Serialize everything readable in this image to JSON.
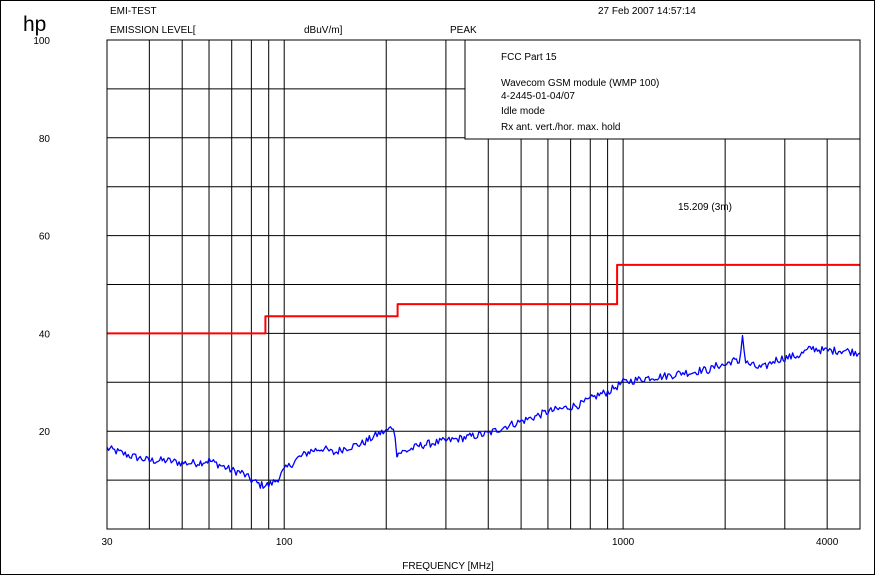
{
  "logo": "hp",
  "header": {
    "test_name": "EMI-TEST",
    "measurement": "EMISSION LEVEL[",
    "unit": "dBuV/m]",
    "detector": "PEAK",
    "datetime": "27 Feb 2007  14:57:14"
  },
  "info_box": [
    "FCC Part 15",
    "Wavecom GSM module (WMP 100)",
    "4-2445-01-04/07",
    "Idle mode",
    "Rx ant. vert./hor. max. hold"
  ],
  "limit_label": "15.209  (3m)",
  "colors": {
    "limit": "#ff0000",
    "trace": "#0000ff",
    "detector": "#0000ff",
    "grid": "#000000"
  },
  "chart_data": {
    "type": "line",
    "title": "",
    "xlabel": "FREQUENCY [MHz]",
    "ylabel": "EMISSION LEVEL[ dBuV/m]",
    "xscale": "log",
    "xlim": [
      30,
      5000
    ],
    "ylim": [
      0,
      100
    ],
    "x_tick_labels": [
      {
        "value": 30,
        "label": "30"
      },
      {
        "value": 100,
        "label": "100"
      },
      {
        "value": 1000,
        "label": "1000"
      },
      {
        "value": 4000,
        "label": "4000"
      }
    ],
    "y_tick_labels": [
      20,
      40,
      60,
      80,
      100
    ],
    "grid": true,
    "series": [
      {
        "name": "15.209  (3m)",
        "color": "#ff0000",
        "step": true,
        "x": [
          30,
          88,
          88,
          216,
          216,
          960,
          960,
          5000
        ],
        "y": [
          40,
          40,
          43.5,
          43.5,
          46,
          46,
          54,
          54
        ]
      },
      {
        "name": "PEAK",
        "color": "#0000ff",
        "x": [
          30,
          35,
          40,
          45,
          50,
          55,
          60,
          65,
          70,
          75,
          80,
          85,
          90,
          95,
          100,
          110,
          120,
          130,
          140,
          150,
          160,
          170,
          180,
          190,
          200,
          210,
          215,
          217,
          230,
          250,
          270,
          300,
          330,
          360,
          400,
          450,
          500,
          550,
          600,
          650,
          700,
          750,
          800,
          850,
          900,
          950,
          1000,
          1100,
          1200,
          1300,
          1400,
          1500,
          1600,
          1700,
          1800,
          1900,
          2000,
          2100,
          2200,
          2250,
          2300,
          2400,
          2500,
          2600,
          2800,
          3000,
          3300,
          3600,
          3900,
          4200,
          4500,
          5000
        ],
        "y": [
          16.5,
          15,
          14,
          14,
          13.5,
          13.5,
          14,
          13,
          12,
          11.5,
          10,
          9,
          9,
          10,
          12,
          14.5,
          16,
          16.5,
          15.5,
          16.5,
          17,
          17.5,
          18.5,
          19.5,
          20,
          21,
          15.5,
          15.5,
          16,
          17,
          17.5,
          18,
          18.5,
          19,
          19.5,
          21,
          22,
          23,
          24,
          24.5,
          25,
          25.5,
          26.5,
          27.5,
          28,
          29,
          30,
          30.5,
          31,
          31.2,
          31.5,
          32,
          32,
          32.5,
          32.5,
          33.5,
          33.5,
          34.5,
          34,
          39.5,
          34,
          33.5,
          33,
          33,
          34.5,
          35,
          35.5,
          37,
          36.5,
          36.5,
          36.5,
          36
        ]
      }
    ]
  }
}
